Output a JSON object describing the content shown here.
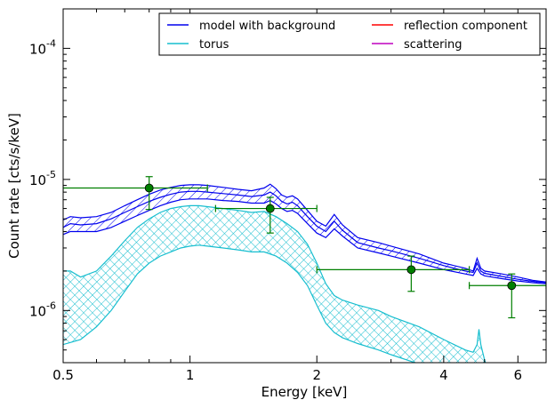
{
  "chart_data": {
    "type": "line",
    "xlabel": "Energy [keV]",
    "ylabel": "Count rate [cts/s/keV]",
    "xscale": "log",
    "yscale": "log",
    "xlim": [
      0.5,
      7.0
    ],
    "ylim": [
      4e-07,
      0.0002
    ],
    "x_tick_labels": [
      {
        "value": 0.5,
        "label": "0.5"
      },
      {
        "value": 1,
        "label": "1"
      },
      {
        "value": 2,
        "label": "2"
      },
      {
        "value": 4,
        "label": "4"
      },
      {
        "value": 6,
        "label": "6"
      }
    ],
    "y_tick_labels": [
      {
        "value": 1e-06,
        "base": "10",
        "exp": "-6"
      },
      {
        "value": 1e-05,
        "base": "10",
        "exp": "-5"
      },
      {
        "value": 0.0001,
        "base": "10",
        "exp": "-4"
      }
    ],
    "legend": {
      "placement": "top-right",
      "entries": [
        {
          "name": "model with background",
          "color": "#0000ee"
        },
        {
          "name": "reflection component",
          "color": "#ff0000"
        },
        {
          "name": "torus",
          "color": "#17becf"
        },
        {
          "name": "scattering",
          "color": "#bf00bf"
        }
      ]
    },
    "series": [
      {
        "name": "model with background",
        "color": "#0000ee",
        "hatch": "diagonal",
        "x": [
          0.5,
          0.52,
          0.55,
          0.6,
          0.65,
          0.7,
          0.75,
          0.8,
          0.85,
          0.9,
          0.95,
          1.0,
          1.05,
          1.1,
          1.2,
          1.3,
          1.4,
          1.5,
          1.55,
          1.6,
          1.65,
          1.7,
          1.75,
          1.8,
          1.9,
          2.0,
          2.1,
          2.2,
          2.3,
          2.5,
          2.8,
          3.0,
          3.5,
          4.0,
          4.5,
          4.7,
          4.8,
          4.9,
          5.0,
          5.5,
          6.0,
          6.5,
          7.0
        ],
        "upper": [
          4.9e-06,
          5.2e-06,
          5.1e-06,
          5.2e-06,
          5.6e-06,
          6.3e-06,
          7e-06,
          7.7e-06,
          8.3e-06,
          8.7e-06,
          9e-06,
          9.1e-06,
          9.1e-06,
          9e-06,
          8.7e-06,
          8.4e-06,
          8.2e-06,
          8.6e-06,
          9.2e-06,
          8.5e-06,
          7.6e-06,
          7.3e-06,
          7.5e-06,
          7.1e-06,
          5.8e-06,
          4.8e-06,
          4.4e-06,
          5.4e-06,
          4.5e-06,
          3.6e-06,
          3.3e-06,
          3.1e-06,
          2.7e-06,
          2.3e-06,
          2.1e-06,
          2e-06,
          2.5e-06,
          2.1e-06,
          2e-06,
          1.9e-06,
          1.8e-06,
          1.7e-06,
          1.65e-06
        ],
        "mid": [
          4.3e-06,
          4.6e-06,
          4.5e-06,
          4.6e-06,
          5e-06,
          5.6e-06,
          6.2e-06,
          6.8e-06,
          7.3e-06,
          7.7e-06,
          8e-06,
          8.1e-06,
          8.1e-06,
          8e-06,
          7.8e-06,
          7.6e-06,
          7.4e-06,
          7.6e-06,
          8e-06,
          7.5e-06,
          6.8e-06,
          6.5e-06,
          6.7e-06,
          6.3e-06,
          5.2e-06,
          4.4e-06,
          4e-06,
          4.8e-06,
          4.1e-06,
          3.3e-06,
          3e-06,
          2.85e-06,
          2.5e-06,
          2.2e-06,
          2e-06,
          1.95e-06,
          2.3e-06,
          2e-06,
          1.92e-06,
          1.82e-06,
          1.73e-06,
          1.67e-06,
          1.63e-06
        ],
        "lower": [
          3.8e-06,
          4e-06,
          4e-06,
          4e-06,
          4.3e-06,
          4.8e-06,
          5.3e-06,
          5.8e-06,
          6.3e-06,
          6.7e-06,
          7e-06,
          7.1e-06,
          7.1e-06,
          7.1e-06,
          6.9e-06,
          6.8e-06,
          6.6e-06,
          6.6e-06,
          6.9e-06,
          6.5e-06,
          6e-06,
          5.7e-06,
          5.8e-06,
          5.5e-06,
          4.6e-06,
          3.9e-06,
          3.6e-06,
          4.2e-06,
          3.7e-06,
          3e-06,
          2.75e-06,
          2.6e-06,
          2.3e-06,
          2.05e-06,
          1.9e-06,
          1.85e-06,
          2.1e-06,
          1.9e-06,
          1.84e-06,
          1.75e-06,
          1.68e-06,
          1.63e-06,
          1.6e-06
        ]
      },
      {
        "name": "torus",
        "color": "#17becf",
        "hatch": "cross",
        "x": [
          0.5,
          0.52,
          0.55,
          0.6,
          0.65,
          0.7,
          0.75,
          0.8,
          0.85,
          0.9,
          0.95,
          1.0,
          1.05,
          1.1,
          1.2,
          1.3,
          1.4,
          1.5,
          1.6,
          1.7,
          1.8,
          1.9,
          2.0,
          2.1,
          2.2,
          2.3,
          2.5,
          2.8,
          3.0,
          3.5,
          4.0,
          4.5,
          4.7,
          4.8,
          4.85,
          4.9,
          5.0,
          5.1
        ],
        "upper": [
          2e-06,
          2e-06,
          1.8e-06,
          2e-06,
          2.6e-06,
          3.4e-06,
          4.3e-06,
          5e-06,
          5.6e-06,
          6e-06,
          6.2e-06,
          6.3e-06,
          6.3e-06,
          6.2e-06,
          6e-06,
          5.8e-06,
          5.6e-06,
          5.7e-06,
          5.2e-06,
          4.6e-06,
          4e-06,
          3.2e-06,
          2.3e-06,
          1.6e-06,
          1.3e-06,
          1.2e-06,
          1.1e-06,
          1e-06,
          9e-07,
          7.5e-07,
          6e-07,
          5e-07,
          4.8e-07,
          5.5e-07,
          7.2e-07,
          5.5e-07,
          4.2e-07,
          3.5e-07
        ],
        "lower": [
          5.5e-07,
          5.7e-07,
          6e-07,
          7.5e-07,
          1e-06,
          1.4e-06,
          1.9e-06,
          2.3e-06,
          2.6e-06,
          2.8e-06,
          3e-06,
          3.1e-06,
          3.15e-06,
          3.1e-06,
          3e-06,
          2.9e-06,
          2.8e-06,
          2.8e-06,
          2.6e-06,
          2.3e-06,
          1.95e-06,
          1.55e-06,
          1.1e-06,
          8e-07,
          6.8e-07,
          6.2e-07,
          5.6e-07,
          5e-07,
          4.6e-07,
          3.9e-07,
          3.3e-07,
          2.9e-07,
          2.8e-07,
          3e-07,
          3.5e-07,
          3e-07,
          2.6e-07,
          2.2e-07
        ]
      }
    ],
    "data_points": {
      "color": "#007f00",
      "points": [
        {
          "x": 0.8,
          "y": 8.6e-06,
          "xlo": 0.5,
          "xhi": 1.1,
          "ylo": 5.9e-06,
          "yhi": 1.05e-05
        },
        {
          "x": 1.55,
          "y": 6e-06,
          "xlo": 1.15,
          "xhi": 2.0,
          "ylo": 3.9e-06,
          "yhi": 7.3e-06
        },
        {
          "x": 3.35,
          "y": 2.05e-06,
          "xlo": 2.0,
          "xhi": 4.6,
          "ylo": 1.4e-06,
          "yhi": 2.6e-06
        },
        {
          "x": 5.8,
          "y": 1.55e-06,
          "xlo": 4.6,
          "xhi": 7.0,
          "ylo": 8.8e-07,
          "yhi": 1.9e-06
        }
      ]
    }
  }
}
